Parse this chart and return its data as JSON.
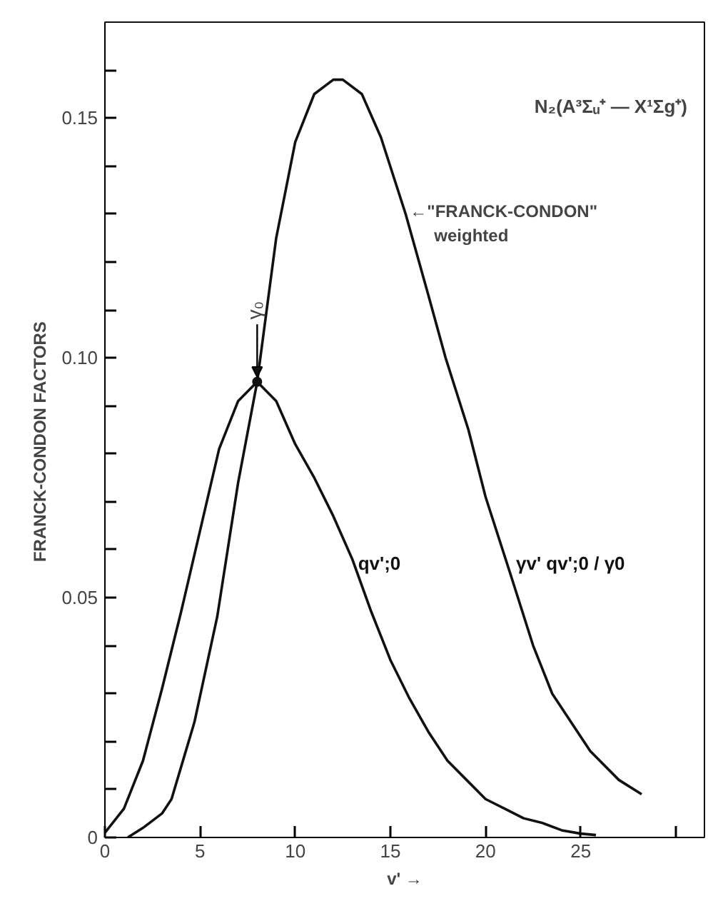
{
  "chart_data": {
    "type": "line",
    "xlabel": "v' →",
    "ylabel": "FRANCK-CONDON      FACTORS",
    "xlim": [
      0,
      31.5
    ],
    "ylim": [
      0,
      0.17
    ],
    "xticks": [
      0,
      5,
      10,
      15,
      20,
      25,
      {
        "value": 30,
        "label": null
      }
    ],
    "yticks": [
      0,
      {
        "value": 0.01,
        "label": null
      },
      {
        "value": 0.02,
        "label": null
      },
      {
        "value": 0.03,
        "label": null
      },
      {
        "value": 0.04,
        "label": null
      },
      0.05,
      {
        "value": 0.06,
        "label": null
      },
      {
        "value": 0.07,
        "label": null
      },
      {
        "value": 0.08,
        "label": null
      },
      {
        "value": 0.09,
        "label": null
      },
      {
        "value": 0.1,
        "label": "0.10"
      },
      {
        "value": 0.11,
        "label": null
      },
      {
        "value": 0.12,
        "label": null
      },
      {
        "value": 0.13,
        "label": null
      },
      {
        "value": 0.14,
        "label": null
      },
      0.15,
      {
        "value": 0.16,
        "label": null
      }
    ],
    "grid": false,
    "marker": "none",
    "line_style": "solid",
    "series": [
      {
        "name": "qv';0",
        "color": "#111111",
        "x": [
          0,
          1,
          2,
          3,
          4,
          5,
          6,
          7,
          8,
          9,
          10,
          11,
          12,
          13,
          14,
          15,
          16,
          17,
          18,
          19,
          20,
          21,
          22,
          23,
          24,
          25,
          25.8
        ],
        "values": [
          0.001,
          0.006,
          0.016,
          0.031,
          0.047,
          0.064,
          0.081,
          0.091,
          0.095,
          0.091,
          0.082,
          0.075,
          0.067,
          0.058,
          0.047,
          0.037,
          0.029,
          0.022,
          0.016,
          0.012,
          0.008,
          0.006,
          0.004,
          0.003,
          0.0015,
          0.0008,
          0.0005
        ]
      },
      {
        "name": "γv' qv';0 / γ0",
        "color": "#111111",
        "x": [
          1.2,
          2,
          3,
          3.5,
          4.7,
          5.9,
          7,
          8,
          9,
          10,
          11,
          12,
          12.5,
          13.5,
          14.5,
          15.8,
          17,
          17.9,
          19.1,
          20,
          21.3,
          22.5,
          23.5,
          25.5,
          27,
          28.2
        ],
        "values": [
          0,
          0.002,
          0.005,
          0.008,
          0.024,
          0.046,
          0.074,
          0.095,
          0.125,
          0.145,
          0.155,
          0.158,
          0.158,
          0.155,
          0.146,
          0.13,
          0.113,
          0.1,
          0.085,
          0.071,
          0.055,
          0.04,
          0.03,
          0.018,
          0.012,
          0.009
        ]
      }
    ],
    "annotations": [
      "N₂(A³Σᵤ⁺ — X¹Σg⁺)",
      {
        "text": "←\"FRANCK-CONDON\"",
        "x": 15.8,
        "y": 0.13
      },
      "weighted",
      {
        "text": "γ₀",
        "x": 8,
        "y": 0.095
      }
    ]
  }
}
